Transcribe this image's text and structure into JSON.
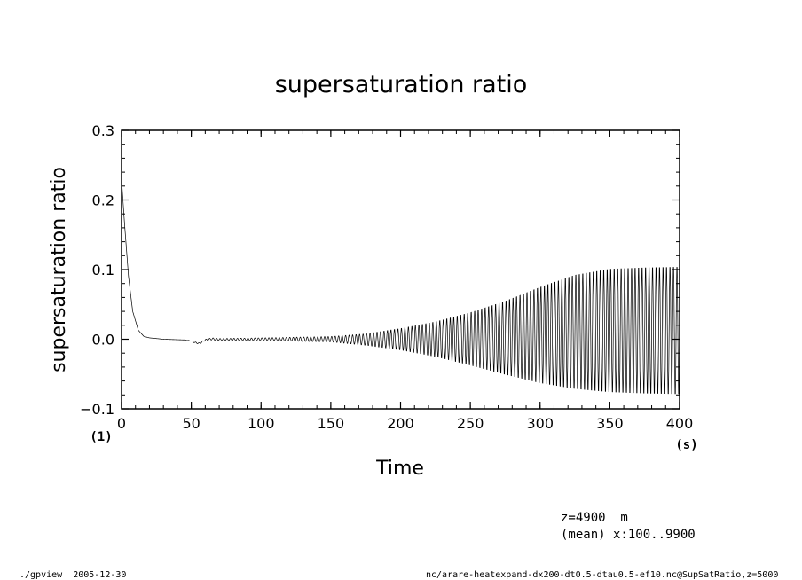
{
  "chart_data": {
    "type": "line",
    "title": "supersaturation ratio",
    "xlabel": "Time",
    "ylabel": "supersaturation ratio",
    "x_unit": "(s)",
    "y_unit": "(1)",
    "xlim": [
      0,
      400
    ],
    "ylim": [
      -0.1,
      0.3
    ],
    "x_ticks": [
      "0",
      "50",
      "100",
      "150",
      "200",
      "250",
      "300",
      "350",
      "400"
    ],
    "y_ticks": [
      "−0.1",
      "0.0",
      "0.1",
      "0.2",
      "0.3"
    ],
    "grid": false,
    "series": [
      {
        "style": "oscillation envelope",
        "x": [
          0,
          2,
          5,
          8,
          12,
          16,
          20,
          30,
          45,
          50,
          53,
          56,
          60,
          65,
          70,
          100,
          150,
          175,
          200,
          225,
          250,
          275,
          300,
          325,
          350,
          375,
          400
        ],
        "upper": [
          0.23,
          0.17,
          0.09,
          0.04,
          0.013,
          0.004,
          0.002,
          0.0,
          -0.001,
          -0.002,
          -0.004,
          -0.005,
          0.0,
          0.002,
          0.001,
          0.002,
          0.004,
          0.008,
          0.016,
          0.026,
          0.04,
          0.057,
          0.078,
          0.096,
          0.105,
          0.107,
          0.108
        ],
        "lower": [
          0.23,
          0.17,
          0.09,
          0.04,
          0.013,
          0.004,
          0.002,
          0.0,
          -0.001,
          -0.003,
          -0.006,
          -0.007,
          -0.002,
          -0.001,
          -0.002,
          -0.002,
          -0.004,
          -0.009,
          -0.016,
          -0.026,
          -0.039,
          -0.053,
          -0.066,
          -0.075,
          -0.08,
          -0.082,
          -0.083
        ]
      }
    ]
  },
  "annotations": {
    "level": "z=4900  m",
    "mean": "(mean) x:100..9900"
  },
  "footer": {
    "program": "./gpview  2005-12-30",
    "source": "nc/arare-heatexpand-dx200-dt0.5-dtau0.5-ef10.nc@SupSatRatio,z=5000"
  }
}
